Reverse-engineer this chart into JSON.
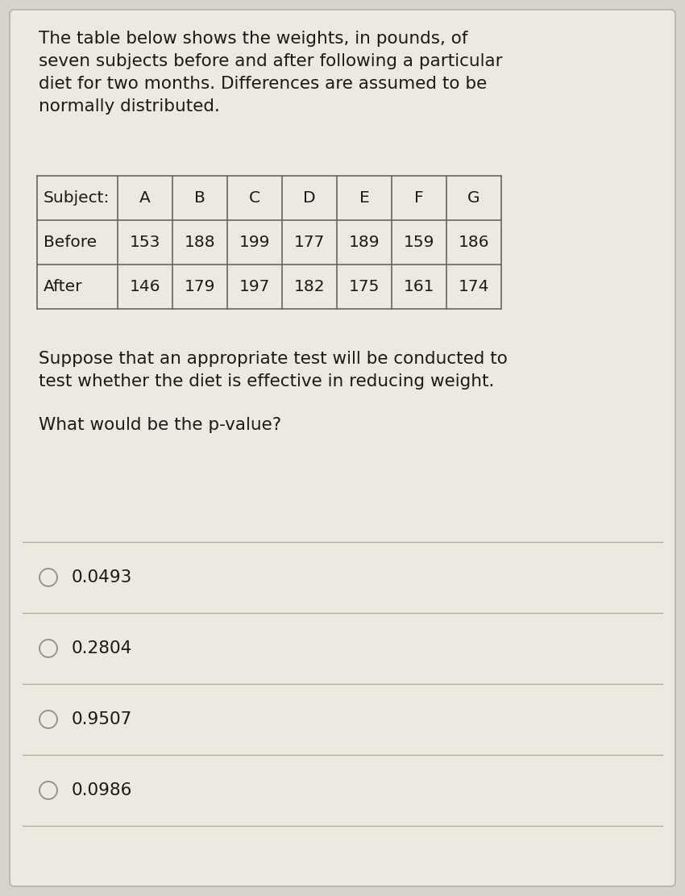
{
  "background_color": "#d8d4cc",
  "card_color": "#ede9e1",
  "title_text": "The table below shows the weights, in pounds, of\nseven subjects before and after following a particular\ndiet for two months. Differences are assumed to be\nnormally distributed.",
  "title_fontsize": 15.5,
  "table_headers": [
    "Subject:",
    "A",
    "B",
    "C",
    "D",
    "E",
    "F",
    "G"
  ],
  "table_row1_label": "Before",
  "table_row1_values": [
    153,
    188,
    199,
    177,
    189,
    159,
    186
  ],
  "table_row2_label": "After",
  "table_row2_values": [
    146,
    179,
    197,
    182,
    175,
    161,
    174
  ],
  "question_text": "Suppose that an appropriate test will be conducted to\ntest whether the diet is effective in reducing weight.",
  "question2_text": "What would be the p-value?",
  "options": [
    "0.0493",
    "0.2804",
    "0.9507",
    "0.0986"
  ],
  "option_fontsize": 15.5,
  "question_fontsize": 15.5,
  "text_color": "#1a1a1a",
  "table_line_color": "#666666",
  "divider_color": "#b0a898",
  "card_border_color": "#b8b0a4"
}
